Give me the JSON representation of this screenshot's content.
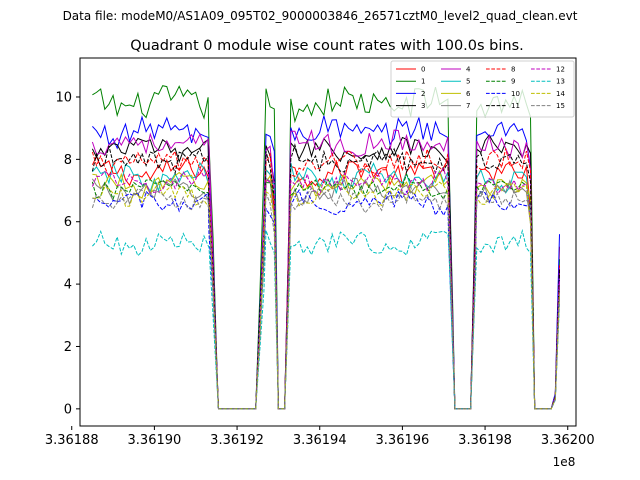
{
  "chart_data": {
    "type": "line",
    "suptitle": "Data file: modeM0/AS1A09_095T02_9000003846_26571cztM0_level2_quad_clean.evt",
    "title": "Quadrant 0 module wise count rates with 100.0s bins.",
    "xlabel": "",
    "ylabel": "",
    "x_offset_label": "1e8",
    "xlim": [
      3.361882,
      3.362002
    ],
    "ylim": [
      -0.55,
      11.25
    ],
    "xticks": [
      {
        "value": 3.36188,
        "label": "3.36188"
      },
      {
        "value": 3.3619,
        "label": "3.36190"
      },
      {
        "value": 3.36192,
        "label": "3.36192"
      },
      {
        "value": 3.36194,
        "label": "3.36194"
      },
      {
        "value": 3.36196,
        "label": "3.36196"
      },
      {
        "value": 3.36198,
        "label": "3.36198"
      },
      {
        "value": 3.362,
        "label": "3.36200"
      }
    ],
    "yticks": [
      {
        "value": 0,
        "label": "0"
      },
      {
        "value": 2,
        "label": "2"
      },
      {
        "value": 4,
        "label": "4"
      },
      {
        "value": 6,
        "label": "6"
      },
      {
        "value": 8,
        "label": "8"
      },
      {
        "value": 10,
        "label": "10"
      }
    ],
    "legend_position": "top-right",
    "note": "Each module curve follows the same observation-window pattern: active data from ~3.361885e8 to ~3.361913e8, ~3.361927e8 to ~3.361930e8, ~3.361934e8 to ~3.361971e8, ~3.361977e8 to ~3.361991e8; zero count rate in between; short spike near 3.36199e8 end.",
    "series": [
      {
        "name": "0",
        "color": "#ff0000",
        "dash": "solid",
        "mean": 7.6,
        "amp": 0.35,
        "spike": 4.6
      },
      {
        "name": "1",
        "color": "#008000",
        "dash": "solid",
        "mean": 9.8,
        "amp": 0.45,
        "spike": 4.2
      },
      {
        "name": "2",
        "color": "#0000ff",
        "dash": "solid",
        "mean": 8.9,
        "amp": 0.4,
        "spike": 5.0
      },
      {
        "name": "3",
        "color": "#000000",
        "dash": "solid",
        "mean": 8.3,
        "amp": 0.35,
        "spike": 3.8
      },
      {
        "name": "4",
        "color": "#bf00bf",
        "dash": "solid",
        "mean": 8.5,
        "amp": 0.35,
        "spike": 4.0
      },
      {
        "name": "5",
        "color": "#00bfbf",
        "dash": "solid",
        "mean": 7.4,
        "amp": 0.35,
        "spike": 3.2
      },
      {
        "name": "6",
        "color": "#bfbf00",
        "dash": "solid",
        "mean": 7.2,
        "amp": 0.3,
        "spike": 3.4
      },
      {
        "name": "7",
        "color": "#808080",
        "dash": "solid",
        "mean": 7.0,
        "amp": 0.3,
        "spike": 3.0
      },
      {
        "name": "8",
        "color": "#ff0000",
        "dash": "dashed",
        "mean": 7.9,
        "amp": 0.35,
        "spike": 4.0
      },
      {
        "name": "9",
        "color": "#008000",
        "dash": "dashed",
        "mean": 7.1,
        "amp": 0.3,
        "spike": 3.3
      },
      {
        "name": "10",
        "color": "#0000ff",
        "dash": "dashed",
        "mean": 6.6,
        "amp": 0.3,
        "spike": 3.6
      },
      {
        "name": "11",
        "color": "#000000",
        "dash": "dashed",
        "mean": 8.0,
        "amp": 0.35,
        "spike": 3.9
      },
      {
        "name": "12",
        "color": "#bf00bf",
        "dash": "dashed",
        "mean": 7.3,
        "amp": 0.3,
        "spike": 3.5
      },
      {
        "name": "13",
        "color": "#00bfbf",
        "dash": "dashed",
        "mean": 5.3,
        "amp": 0.3,
        "spike": 2.8
      },
      {
        "name": "14",
        "color": "#bfbf00",
        "dash": "dashed",
        "mean": 6.9,
        "amp": 0.3,
        "spike": 3.1
      },
      {
        "name": "15",
        "color": "#808080",
        "dash": "dashed",
        "mean": 6.7,
        "amp": 0.3,
        "spike": 3.0
      }
    ]
  }
}
